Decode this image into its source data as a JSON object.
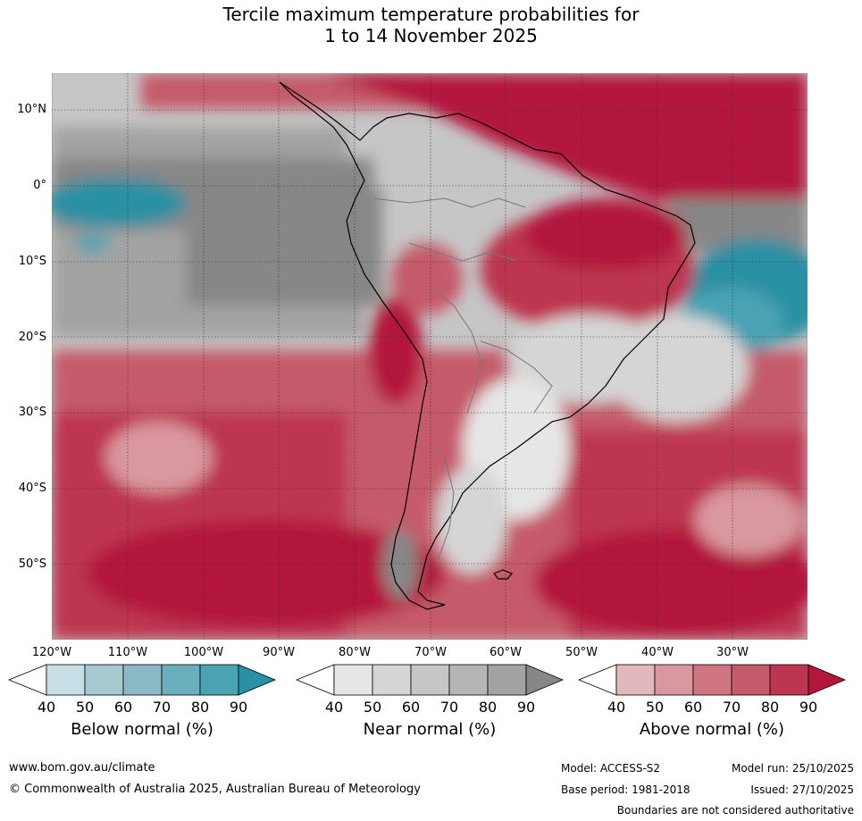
{
  "title_line1": "Tercile maximum temperature probabilities for",
  "title_line2": "1 to 14 November 2025",
  "lat_labels": [
    "10°N",
    "0°",
    "10°S",
    "20°S",
    "30°S",
    "40°S",
    "50°S"
  ],
  "lon_labels": [
    "120°W",
    "110°W",
    "100°W",
    "90°W",
    "80°W",
    "70°W",
    "60°W",
    "50°W",
    "40°W",
    "30°W"
  ],
  "legend": {
    "below": {
      "label": "Below normal (%)",
      "ticks": [
        "40",
        "50",
        "60",
        "70",
        "80",
        "90"
      ],
      "colors": [
        "#ffffff",
        "#c6e0e6",
        "#a6c9cf",
        "#8bbac6",
        "#6aafbd",
        "#4aa3b3",
        "#2a90a3"
      ]
    },
    "near": {
      "label": "Near normal (%)",
      "ticks": [
        "40",
        "50",
        "60",
        "70",
        "80",
        "90"
      ],
      "colors": [
        "#ffffff",
        "#e6e6e6",
        "#d5d5d5",
        "#c6c6c6",
        "#b5b5b5",
        "#a3a3a3",
        "#878787"
      ]
    },
    "above": {
      "label": "Above normal (%)",
      "ticks": [
        "40",
        "50",
        "60",
        "70",
        "80",
        "90"
      ],
      "colors": [
        "#ffffff",
        "#e3b8bd",
        "#d9979f",
        "#cf7682",
        "#c55a6a",
        "#bd3550",
        "#b3183c"
      ]
    }
  },
  "footer": {
    "website": "www.bom.gov.au/climate",
    "copyright": "© Commonwealth of Australia 2025, Australian Bureau of Meteorology",
    "model": "Model: ACCESS-S2",
    "base_period": "Base period: 1981-2018",
    "model_run": "Model run: 25/10/2025",
    "issued": "Issued: 27/10/2025",
    "boundaries": "Boundaries are not considered authoritative"
  }
}
